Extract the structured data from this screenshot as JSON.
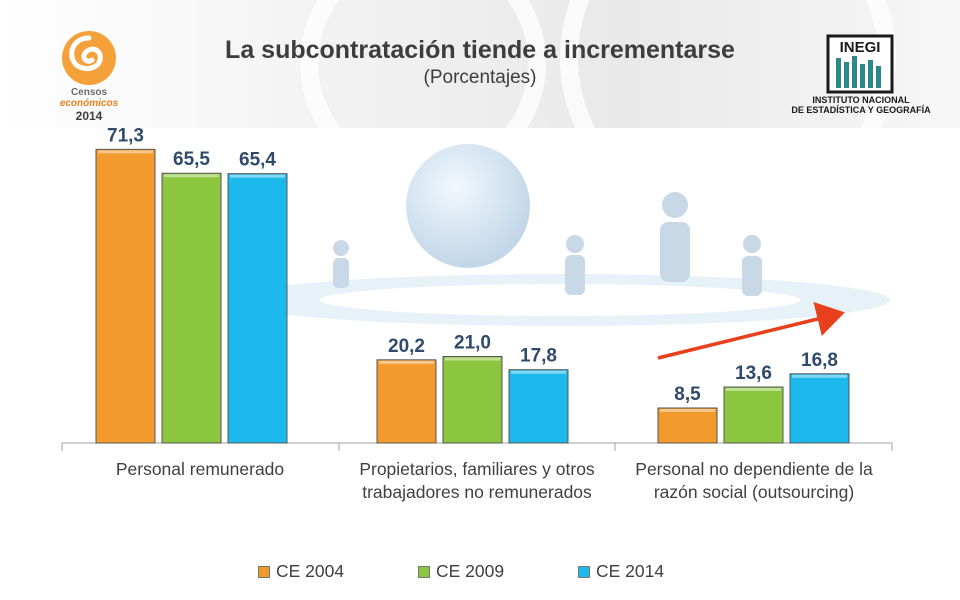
{
  "header": {
    "title": "La subcontratación tiende a incrementarse",
    "subtitle": "(Porcentajes)"
  },
  "logos": {
    "left": {
      "line1": "Censos",
      "line2": "económicos",
      "line3": "2014"
    },
    "right": {
      "brand": "INEGI",
      "line1": "INSTITUTO NACIONAL",
      "line2": "DE ESTADÍSTICA Y GEOGRAFÍA"
    }
  },
  "chart_data": {
    "type": "bar",
    "title": "La subcontratación tiende a incrementarse",
    "subtitle": "(Porcentajes)",
    "categories": [
      "Personal remunerado",
      "Propietarios, familiares y otros trabajadores no remunerados",
      "Personal no dependiente de la razón social (outsourcing)"
    ],
    "series": [
      {
        "name": "CE 2004",
        "values": [
          71.3,
          20.2,
          8.5
        ]
      },
      {
        "name": "CE 2009",
        "values": [
          65.5,
          21.0,
          13.6
        ]
      },
      {
        "name": "CE 2014",
        "values": [
          65.4,
          17.8,
          16.8
        ]
      }
    ],
    "data_labels": [
      [
        "71,3",
        "20,2",
        "8,5"
      ],
      [
        "65,5",
        "21,0",
        "13,6"
      ],
      [
        "65,4",
        "17,8",
        "16,8"
      ]
    ],
    "ylim": [
      0,
      76
    ],
    "grid": false,
    "legend_position": "bottom",
    "annotation": "upward trend arrow over outsourcing category",
    "colors": {
      "CE 2004": "#f39a2d",
      "CE 2009": "#8cc63f",
      "CE 2014": "#1eb9ec",
      "arrow": "#e8401c"
    }
  }
}
